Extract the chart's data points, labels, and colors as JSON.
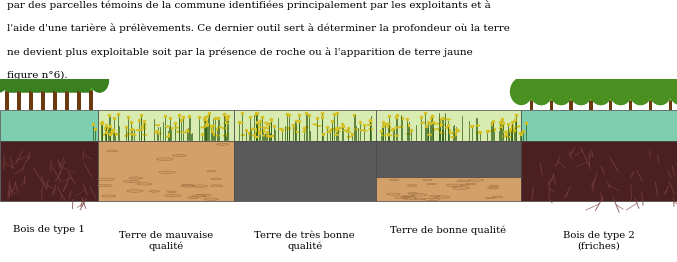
{
  "figsize": [
    6.77,
    2.62
  ],
  "dpi": 100,
  "bg_color": "#ffffff",
  "text_lines": [
    "par des parcelles témoins de la commune identifiées principalement par les exploitants et à",
    "l'aide d'une tarière à prélèvements. Ce dernier outil sert à déterminer la profondeur où la terre",
    "ne devient plus exploitable soit par la présence de roche ou à l'apparition de terre jaune",
    "figure n°6)."
  ],
  "label_fontsize": 7.2,
  "text_fontsize": 7.5,
  "teal_color": "#7ecfb0",
  "dark_soil": "#4a2020",
  "sand_color": "#d4a06a",
  "rock_color": "#5a5a5a",
  "grass_color": "#d8ebb0",
  "tree_green_dark": "#3a8020",
  "tree_green_light": "#5ab030",
  "trunk_color": "#6b3a10",
  "plant_stem": "#2a5a10",
  "plant_tip": "#d4c020"
}
